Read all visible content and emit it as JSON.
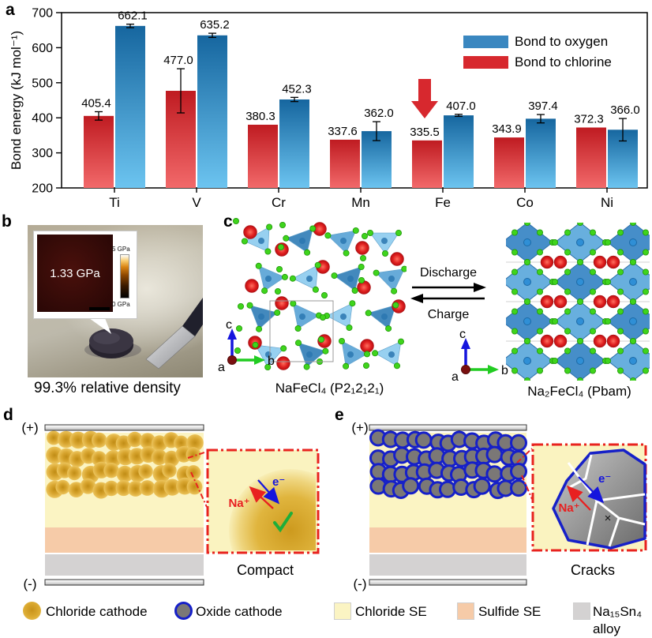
{
  "panel_a": {
    "label": "a"
  },
  "chart_data": {
    "type": "bar",
    "title": "",
    "categories": [
      "Ti",
      "V",
      "Cr",
      "Mn",
      "Fe",
      "Co",
      "Ni"
    ],
    "series": [
      {
        "name": "Bond to oxygen",
        "position": "right",
        "fill_top": "#16669f",
        "fill_bottom": "#6cc4f0",
        "legend_fill": "#3a87c0",
        "values": [
          662.1,
          635.2,
          452.3,
          362.0,
          407.0,
          397.4,
          366.0
        ],
        "errors": [
          5,
          6,
          6,
          27,
          3,
          12,
          32
        ]
      },
      {
        "name": "Bond to chlorine",
        "position": "left",
        "fill_top": "#bf1b21",
        "fill_bottom": "#f2696a",
        "legend_fill": "#d7282e",
        "values": [
          405.4,
          477.0,
          380.3,
          337.6,
          335.5,
          343.9,
          372.3
        ],
        "errors": [
          12,
          63,
          0,
          0,
          0,
          0,
          0
        ]
      }
    ],
    "ylabel": "Bond energy (kJ mol⁻¹)",
    "xlabel": "",
    "ylim": [
      200,
      700
    ],
    "yticks": [
      200,
      300,
      400,
      500,
      600,
      700
    ],
    "grid": false,
    "legend_position": "top-right-inside",
    "annotation": {
      "type": "arrow-down",
      "category": "Fe",
      "category_index": 4,
      "series": "Bond to chlorine",
      "color": "#d7282e"
    }
  },
  "panel_b": {
    "label": "b",
    "inset_value": "1.33 GPa",
    "scale_max": "5 GPa",
    "scale_min": "0 GPa",
    "caption": "99.3% relative density"
  },
  "panel_c": {
    "label": "c",
    "left_caption": "NaFeCl₄ (P2₁2₁2₁)",
    "right_caption": "Na₂FeCl₄ (Pbam)",
    "forward": "Discharge",
    "backward": "Charge",
    "axes": {
      "up": "c",
      "right": "b",
      "origin": "a"
    }
  },
  "panel_d": {
    "label": "d",
    "plus_terminal": "(+)",
    "minus_terminal": "(-)",
    "ion": "Na⁺",
    "electron": "e⁻",
    "caption": "Compact"
  },
  "panel_e": {
    "label": "e",
    "plus_terminal": "(+)",
    "minus_terminal": "(-)",
    "ion": "Na⁺",
    "electron": "e⁻",
    "cross_mark": "×",
    "caption": "Cracks"
  },
  "legend": {
    "items": [
      {
        "swatch": "gold-circle",
        "label": "Chloride cathode"
      },
      {
        "swatch": "gray-circle-blue-ring",
        "label": "Oxide cathode"
      },
      {
        "swatch": "pale-yellow-square",
        "label": "Chloride SE"
      },
      {
        "swatch": "salmon-square",
        "label": "Sulfide SE"
      },
      {
        "swatch": "gray-square",
        "label": "Na₁₅Sn₄ alloy"
      }
    ]
  },
  "colors": {
    "annotation_arrow": "#d7282e",
    "chloride_cathode": "#e2b23a",
    "oxide_particle": "#7b7876",
    "oxide_ring": "#1620c8",
    "chloride_se": "#fbf4c3",
    "sulfide_se": "#f6cba8",
    "alloy": "#d4d2d2",
    "inset_border": "#e8231f",
    "ion_red": "#e82020",
    "electron_blue": "#1515dd",
    "check_green": "#1fae3a",
    "red_sphere": "#dd1a1d",
    "green_sphere": "#3fd41c",
    "tetrahedron_blue": "#2f7cb6",
    "octahedron_blue": "#3c88c6"
  }
}
